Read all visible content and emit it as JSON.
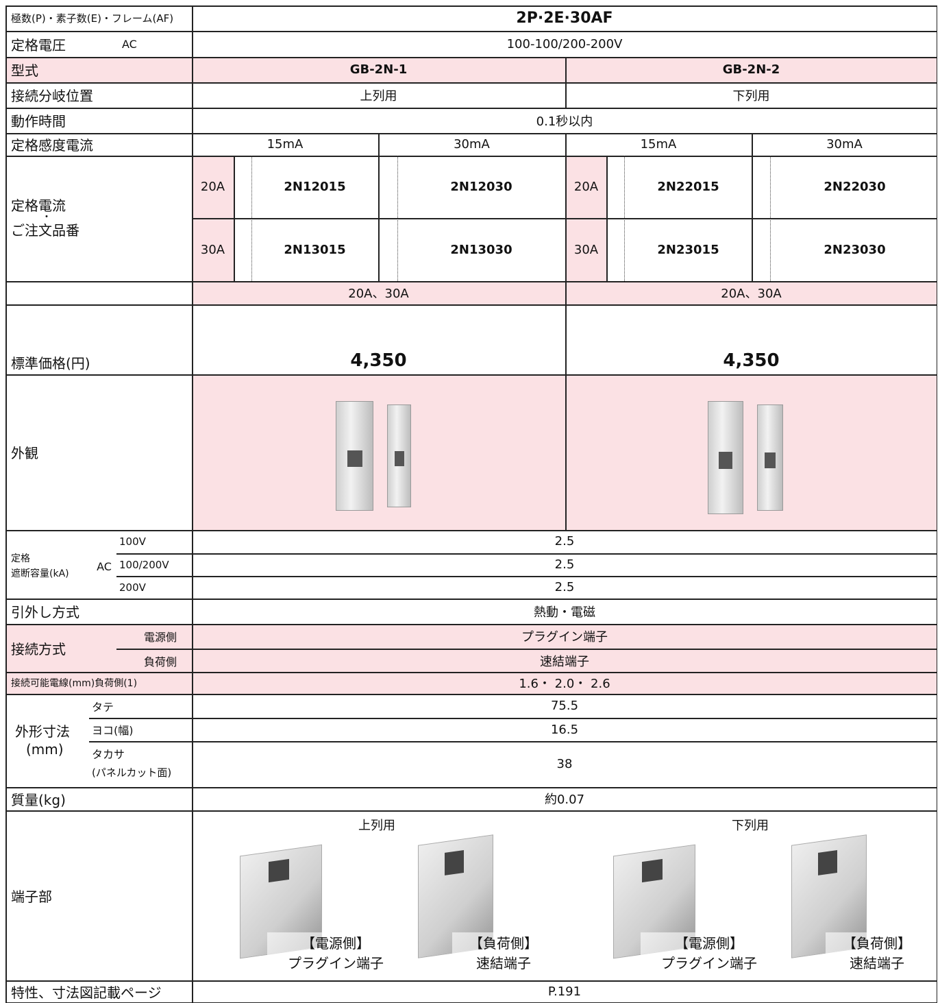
{
  "header": {
    "label": "極数(P)・素子数(E)・フレーム(AF)",
    "value": "2P·2E·30AF"
  },
  "rated_voltage": {
    "label": "定格電圧",
    "unit": "AC",
    "value": "100-100/200-200V"
  },
  "model": {
    "label": "型式",
    "values": [
      "GB-2N-1",
      "GB-2N-2"
    ]
  },
  "branch_position": {
    "label": "接続分岐位置",
    "values": [
      "上列用",
      "下列用"
    ]
  },
  "operating_time": {
    "label": "動作時間",
    "value": "0.1秒以内"
  },
  "sensitivity": {
    "label": "定格感度電流",
    "values": [
      "15mA",
      "30mA",
      "15mA",
      "30mA"
    ]
  },
  "rated_current": {
    "label_lines": [
      "定格電流",
      "・",
      "ご注文品番"
    ],
    "rows": [
      {
        "currents": [
          "20A",
          "20A"
        ],
        "codes": [
          "2N12015",
          "2N12030",
          "2N22015",
          "2N22030"
        ]
      },
      {
        "currents": [
          "30A",
          "30A"
        ],
        "codes": [
          "2N13015",
          "2N13030",
          "2N23015",
          "2N23030"
        ]
      }
    ]
  },
  "current_range": {
    "values": [
      "20A、30A",
      "20A、30A"
    ]
  },
  "price": {
    "label": "標準価格(円)",
    "values": [
      "4,350",
      "4,350"
    ]
  },
  "appearance": {
    "label": "外観"
  },
  "breaking_capacity": {
    "label_lines": [
      "定格",
      "遮断容量(kA)"
    ],
    "unit": "AC",
    "rows": [
      {
        "voltage": "100V",
        "value": "2.5"
      },
      {
        "voltage": "100/200V",
        "value": "2.5"
      },
      {
        "voltage": "200V",
        "value": "2.5"
      }
    ]
  },
  "trip": {
    "label": "引外し方式",
    "value": "熱動・電磁"
  },
  "connection": {
    "label": "接続方式",
    "rows": [
      {
        "side": "電源側",
        "value": "プラグイン端子"
      },
      {
        "side": "負荷側",
        "value": "速結端子"
      }
    ]
  },
  "wire": {
    "label": "接続可能電線(mm)負荷側(1)",
    "value": "1.6・ 2.0・ 2.6"
  },
  "dimensions": {
    "label_lines": [
      "外形寸法",
      "(mm)"
    ],
    "rows": [
      {
        "name": "タテ",
        "value": "75.5"
      },
      {
        "name": "ヨコ(幅)",
        "value": "16.5"
      },
      {
        "name": "タカサ",
        "note": "(パネルカット面)",
        "value": "38"
      }
    ]
  },
  "mass": {
    "label": "質量(kg)",
    "value": "約0.07"
  },
  "terminal": {
    "label": "端子部",
    "groups": [
      {
        "title": "上列用",
        "captions": [
          [
            "【電源側】",
            "プラグイン端子"
          ],
          [
            "【負荷側】",
            "速結端子"
          ]
        ]
      },
      {
        "title": "下列用",
        "captions": [
          [
            "【電源側】",
            "プラグイン端子"
          ],
          [
            "【負荷側】",
            "速結端子"
          ]
        ]
      }
    ]
  },
  "reference": {
    "label": "特性、寸法図記載ページ",
    "value": "P.191"
  }
}
